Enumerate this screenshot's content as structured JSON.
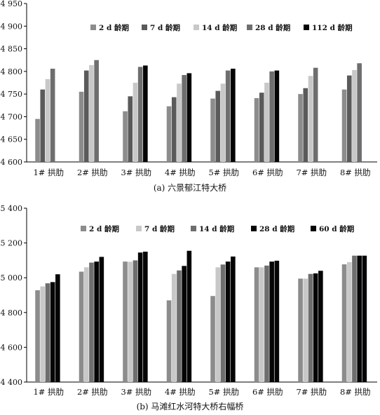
{
  "chart_data": [
    {
      "type": "bar",
      "title": "(a) 六景郁江特大桥",
      "categories": [
        "1# 拱肋",
        "2# 拱肋",
        "3# 拱肋",
        "4# 拱肋",
        "5# 拱肋",
        "6# 拱肋",
        "7# 拱肋",
        "8# 拱肋"
      ],
      "ylim": [
        4600,
        4950
      ],
      "yticks": [
        "4 600",
        "4 650",
        "4 700",
        "4 750",
        "4 800",
        "4 850",
        "4 900",
        "4 950"
      ],
      "legend_position": "top",
      "grid": false,
      "series": [
        {
          "name": "2 d 龄期",
          "color": "#8c8c8c",
          "values": [
            4695,
            4755,
            4712,
            4723,
            4740,
            4741,
            4750,
            4760
          ]
        },
        {
          "name": "7 d 龄期",
          "color": "#5a5a5a",
          "values": [
            4760,
            4802,
            4745,
            4743,
            4757,
            4753,
            4763,
            4791
          ]
        },
        {
          "name": "14 d 龄期",
          "color": "#c8c8c8",
          "values": [
            4783,
            4814,
            4775,
            4773,
            4773,
            4775,
            4790,
            4803
          ]
        },
        {
          "name": "28 d 龄期",
          "color": "#6e6e6e",
          "values": [
            4806,
            4825,
            4810,
            4792,
            4802,
            4800,
            4808,
            4818
          ]
        },
        {
          "name": "112 d 龄期",
          "color": "#050505",
          "values": [
            null,
            null,
            4813,
            4796,
            4806,
            4802,
            null,
            null
          ]
        }
      ]
    },
    {
      "type": "bar",
      "title": "(b) 马滩红水河特大桥右幅桥",
      "categories": [
        "1# 拱肋",
        "2# 拱肋",
        "3# 拱肋",
        "4# 拱肋",
        "5# 拱肋",
        "6# 拱肋",
        "7# 拱肋",
        "8# 拱肋"
      ],
      "ylim": [
        4400,
        5400
      ],
      "yticks": [
        "4 400",
        "4 600",
        "4 800",
        "5 000",
        "5 200",
        "5 400"
      ],
      "legend_position": "top",
      "grid": false,
      "series": [
        {
          "name": "2 d 龄期",
          "color": "#8c8c8c",
          "values": [
            4928,
            5035,
            5093,
            4870,
            4895,
            5060,
            4995,
            5077
          ]
        },
        {
          "name": "7 d 龄期",
          "color": "#c8c8c8",
          "values": [
            4950,
            5060,
            5092,
            5022,
            5060,
            5060,
            4995,
            5090
          ]
        },
        {
          "name": "14 d 龄期",
          "color": "#6e6e6e",
          "values": [
            4968,
            5087,
            5100,
            5042,
            5076,
            5070,
            5022,
            5127
          ]
        },
        {
          "name": "28 d 龄期",
          "color": "#050505",
          "values": [
            4975,
            5093,
            5145,
            5068,
            5093,
            5093,
            5025,
            5127
          ]
        },
        {
          "name": "60 d 龄期",
          "color": "#050505",
          "values": [
            5020,
            5120,
            5150,
            5155,
            5122,
            5098,
            5040,
            5127
          ]
        }
      ]
    }
  ]
}
